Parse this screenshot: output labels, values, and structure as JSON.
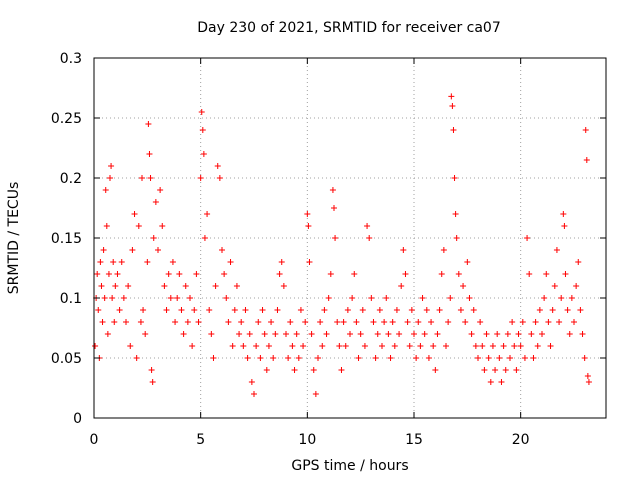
{
  "chart_data": {
    "type": "scatter",
    "title": "Day 230 of 2021, SRMTID for receiver ca07",
    "xlabel": "GPS time / hours",
    "ylabel": "SRMTID / TECUs",
    "xlim": [
      0,
      24
    ],
    "ylim": [
      0,
      0.3
    ],
    "xticks": [
      0,
      5,
      10,
      15,
      20
    ],
    "xtick_labels": [
      "0",
      "5",
      "10",
      "15",
      "20"
    ],
    "yticks": [
      0,
      0.05,
      0.1,
      0.15,
      0.2,
      0.25,
      0.3
    ],
    "ytick_labels": [
      "0",
      "0.05",
      "0.1",
      "0.15",
      "0.2",
      "0.25",
      "0.3"
    ],
    "grid": true,
    "marker": "+",
    "color": "#ff0000",
    "series": [
      {
        "name": "SRMTID",
        "points": [
          [
            0.05,
            0.06
          ],
          [
            0.1,
            0.1
          ],
          [
            0.15,
            0.12
          ],
          [
            0.2,
            0.09
          ],
          [
            0.25,
            0.05
          ],
          [
            0.3,
            0.13
          ],
          [
            0.35,
            0.11
          ],
          [
            0.4,
            0.08
          ],
          [
            0.45,
            0.14
          ],
          [
            0.5,
            0.1
          ],
          [
            0.55,
            0.19
          ],
          [
            0.6,
            0.16
          ],
          [
            0.65,
            0.07
          ],
          [
            0.7,
            0.12
          ],
          [
            0.75,
            0.2
          ],
          [
            0.8,
            0.21
          ],
          [
            0.85,
            0.1
          ],
          [
            0.9,
            0.13
          ],
          [
            0.95,
            0.08
          ],
          [
            1.0,
            0.11
          ],
          [
            1.1,
            0.12
          ],
          [
            1.2,
            0.09
          ],
          [
            1.3,
            0.13
          ],
          [
            1.4,
            0.1
          ],
          [
            1.5,
            0.08
          ],
          [
            1.6,
            0.11
          ],
          [
            1.7,
            0.06
          ],
          [
            1.8,
            0.14
          ],
          [
            1.9,
            0.17
          ],
          [
            2.0,
            0.05
          ],
          [
            2.1,
            0.16
          ],
          [
            2.2,
            0.08
          ],
          [
            2.25,
            0.2
          ],
          [
            2.3,
            0.09
          ],
          [
            2.4,
            0.07
          ],
          [
            2.5,
            0.13
          ],
          [
            2.55,
            0.245
          ],
          [
            2.6,
            0.22
          ],
          [
            2.65,
            0.2
          ],
          [
            2.7,
            0.04
          ],
          [
            2.75,
            0.03
          ],
          [
            2.8,
            0.15
          ],
          [
            2.9,
            0.18
          ],
          [
            3.0,
            0.14
          ],
          [
            3.1,
            0.19
          ],
          [
            3.2,
            0.16
          ],
          [
            3.3,
            0.11
          ],
          [
            3.4,
            0.09
          ],
          [
            3.5,
            0.12
          ],
          [
            3.6,
            0.1
          ],
          [
            3.7,
            0.13
          ],
          [
            3.8,
            0.08
          ],
          [
            3.9,
            0.1
          ],
          [
            4.0,
            0.12
          ],
          [
            4.1,
            0.09
          ],
          [
            4.2,
            0.07
          ],
          [
            4.3,
            0.11
          ],
          [
            4.4,
            0.08
          ],
          [
            4.5,
            0.1
          ],
          [
            4.6,
            0.06
          ],
          [
            4.7,
            0.09
          ],
          [
            4.8,
            0.12
          ],
          [
            4.9,
            0.08
          ],
          [
            5.0,
            0.2
          ],
          [
            5.05,
            0.255
          ],
          [
            5.1,
            0.24
          ],
          [
            5.15,
            0.22
          ],
          [
            5.2,
            0.15
          ],
          [
            5.3,
            0.17
          ],
          [
            5.4,
            0.09
          ],
          [
            5.5,
            0.07
          ],
          [
            5.6,
            0.05
          ],
          [
            5.7,
            0.11
          ],
          [
            5.8,
            0.21
          ],
          [
            5.9,
            0.2
          ],
          [
            6.0,
            0.14
          ],
          [
            6.1,
            0.12
          ],
          [
            6.2,
            0.1
          ],
          [
            6.3,
            0.08
          ],
          [
            6.4,
            0.13
          ],
          [
            6.5,
            0.06
          ],
          [
            6.6,
            0.09
          ],
          [
            6.7,
            0.11
          ],
          [
            6.8,
            0.07
          ],
          [
            6.9,
            0.08
          ],
          [
            7.0,
            0.06
          ],
          [
            7.1,
            0.09
          ],
          [
            7.2,
            0.05
          ],
          [
            7.3,
            0.07
          ],
          [
            7.4,
            0.03
          ],
          [
            7.5,
            0.02
          ],
          [
            7.6,
            0.06
          ],
          [
            7.7,
            0.08
          ],
          [
            7.8,
            0.05
          ],
          [
            7.9,
            0.09
          ],
          [
            8.0,
            0.07
          ],
          [
            8.1,
            0.04
          ],
          [
            8.2,
            0.06
          ],
          [
            8.3,
            0.08
          ],
          [
            8.4,
            0.05
          ],
          [
            8.5,
            0.07
          ],
          [
            8.6,
            0.09
          ],
          [
            8.7,
            0.12
          ],
          [
            8.8,
            0.13
          ],
          [
            8.9,
            0.11
          ],
          [
            9.0,
            0.07
          ],
          [
            9.1,
            0.05
          ],
          [
            9.2,
            0.08
          ],
          [
            9.3,
            0.06
          ],
          [
            9.4,
            0.04
          ],
          [
            9.5,
            0.07
          ],
          [
            9.6,
            0.05
          ],
          [
            9.7,
            0.09
          ],
          [
            9.8,
            0.06
          ],
          [
            9.9,
            0.08
          ],
          [
            10.0,
            0.17
          ],
          [
            10.05,
            0.16
          ],
          [
            10.1,
            0.13
          ],
          [
            10.2,
            0.07
          ],
          [
            10.3,
            0.04
          ],
          [
            10.4,
            0.02
          ],
          [
            10.5,
            0.05
          ],
          [
            10.6,
            0.08
          ],
          [
            10.7,
            0.06
          ],
          [
            10.8,
            0.09
          ],
          [
            10.9,
            0.07
          ],
          [
            11.0,
            0.1
          ],
          [
            11.1,
            0.12
          ],
          [
            11.2,
            0.19
          ],
          [
            11.25,
            0.175
          ],
          [
            11.3,
            0.15
          ],
          [
            11.4,
            0.08
          ],
          [
            11.5,
            0.06
          ],
          [
            11.6,
            0.04
          ],
          [
            11.7,
            0.08
          ],
          [
            11.8,
            0.06
          ],
          [
            11.9,
            0.09
          ],
          [
            12.0,
            0.07
          ],
          [
            12.1,
            0.1
          ],
          [
            12.2,
            0.12
          ],
          [
            12.3,
            0.08
          ],
          [
            12.4,
            0.05
          ],
          [
            12.5,
            0.07
          ],
          [
            12.6,
            0.09
          ],
          [
            12.7,
            0.06
          ],
          [
            12.8,
            0.16
          ],
          [
            12.9,
            0.15
          ],
          [
            13.0,
            0.1
          ],
          [
            13.1,
            0.08
          ],
          [
            13.2,
            0.05
          ],
          [
            13.3,
            0.07
          ],
          [
            13.4,
            0.09
          ],
          [
            13.5,
            0.06
          ],
          [
            13.6,
            0.08
          ],
          [
            13.7,
            0.1
          ],
          [
            13.8,
            0.07
          ],
          [
            13.9,
            0.05
          ],
          [
            14.0,
            0.08
          ],
          [
            14.1,
            0.06
          ],
          [
            14.2,
            0.09
          ],
          [
            14.3,
            0.07
          ],
          [
            14.4,
            0.11
          ],
          [
            14.5,
            0.14
          ],
          [
            14.6,
            0.12
          ],
          [
            14.7,
            0.08
          ],
          [
            14.8,
            0.06
          ],
          [
            14.9,
            0.09
          ],
          [
            15.0,
            0.07
          ],
          [
            15.1,
            0.05
          ],
          [
            15.2,
            0.08
          ],
          [
            15.3,
            0.06
          ],
          [
            15.4,
            0.1
          ],
          [
            15.5,
            0.07
          ],
          [
            15.6,
            0.09
          ],
          [
            15.7,
            0.05
          ],
          [
            15.8,
            0.08
          ],
          [
            15.9,
            0.06
          ],
          [
            16.0,
            0.04
          ],
          [
            16.1,
            0.07
          ],
          [
            16.2,
            0.09
          ],
          [
            16.3,
            0.12
          ],
          [
            16.4,
            0.14
          ],
          [
            16.5,
            0.06
          ],
          [
            16.6,
            0.08
          ],
          [
            16.7,
            0.1
          ],
          [
            16.75,
            0.268
          ],
          [
            16.8,
            0.26
          ],
          [
            16.85,
            0.24
          ],
          [
            16.9,
            0.2
          ],
          [
            16.95,
            0.17
          ],
          [
            17.0,
            0.15
          ],
          [
            17.1,
            0.12
          ],
          [
            17.2,
            0.09
          ],
          [
            17.3,
            0.11
          ],
          [
            17.4,
            0.08
          ],
          [
            17.5,
            0.13
          ],
          [
            17.6,
            0.1
          ],
          [
            17.7,
            0.07
          ],
          [
            17.8,
            0.09
          ],
          [
            17.9,
            0.06
          ],
          [
            18.0,
            0.05
          ],
          [
            18.1,
            0.08
          ],
          [
            18.2,
            0.06
          ],
          [
            18.3,
            0.04
          ],
          [
            18.4,
            0.07
          ],
          [
            18.5,
            0.05
          ],
          [
            18.6,
            0.03
          ],
          [
            18.7,
            0.06
          ],
          [
            18.8,
            0.04
          ],
          [
            18.9,
            0.07
          ],
          [
            19.0,
            0.05
          ],
          [
            19.1,
            0.03
          ],
          [
            19.2,
            0.06
          ],
          [
            19.3,
            0.04
          ],
          [
            19.4,
            0.07
          ],
          [
            19.5,
            0.05
          ],
          [
            19.6,
            0.08
          ],
          [
            19.7,
            0.06
          ],
          [
            19.8,
            0.04
          ],
          [
            19.9,
            0.07
          ],
          [
            20.0,
            0.06
          ],
          [
            20.1,
            0.08
          ],
          [
            20.2,
            0.05
          ],
          [
            20.3,
            0.15
          ],
          [
            20.4,
            0.12
          ],
          [
            20.5,
            0.07
          ],
          [
            20.6,
            0.05
          ],
          [
            20.7,
            0.08
          ],
          [
            20.8,
            0.06
          ],
          [
            20.9,
            0.09
          ],
          [
            21.0,
            0.07
          ],
          [
            21.1,
            0.1
          ],
          [
            21.2,
            0.12
          ],
          [
            21.3,
            0.08
          ],
          [
            21.4,
            0.06
          ],
          [
            21.5,
            0.09
          ],
          [
            21.6,
            0.11
          ],
          [
            21.7,
            0.14
          ],
          [
            21.8,
            0.08
          ],
          [
            21.9,
            0.1
          ],
          [
            22.0,
            0.17
          ],
          [
            22.05,
            0.16
          ],
          [
            22.1,
            0.12
          ],
          [
            22.2,
            0.09
          ],
          [
            22.3,
            0.07
          ],
          [
            22.4,
            0.1
          ],
          [
            22.5,
            0.08
          ],
          [
            22.6,
            0.11
          ],
          [
            22.7,
            0.13
          ],
          [
            22.8,
            0.09
          ],
          [
            22.9,
            0.07
          ],
          [
            23.0,
            0.05
          ],
          [
            23.05,
            0.24
          ],
          [
            23.1,
            0.215
          ],
          [
            23.15,
            0.035
          ],
          [
            23.2,
            0.03
          ]
        ]
      }
    ]
  }
}
